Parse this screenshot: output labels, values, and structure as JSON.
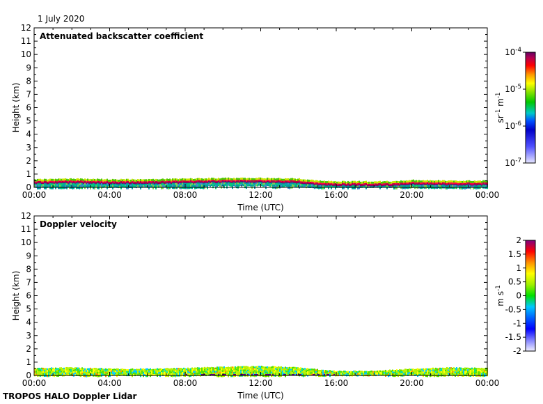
{
  "date_label": "1 July 2020",
  "footer_label": "TROPOS HALO Doppler Lidar",
  "chart_data": [
    {
      "type": "heatmap",
      "title": "Attenuated backscatter coefficient",
      "xlabel": "Time (UTC)",
      "ylabel": "Height (km)",
      "xlim": [
        0,
        24
      ],
      "ylim": [
        0,
        12
      ],
      "x_ticks": [
        "00:00",
        "04:00",
        "08:00",
        "12:00",
        "16:00",
        "20:00",
        "00:00"
      ],
      "y_ticks": [
        "0",
        "1",
        "2",
        "3",
        "4",
        "5",
        "6",
        "7",
        "8",
        "9",
        "10",
        "11",
        "12"
      ],
      "colorbar": {
        "scale": "log",
        "label": "sr-1 m-1",
        "range": [
          1e-07,
          0.0001
        ],
        "tick_labels": [
          "10-4",
          "10-5",
          "10-6",
          "10-7"
        ]
      },
      "boundary_layer_top_km": [
        [
          0,
          0.45
        ],
        [
          2,
          0.5
        ],
        [
          4,
          0.45
        ],
        [
          6,
          0.45
        ],
        [
          8,
          0.5
        ],
        [
          10,
          0.55
        ],
        [
          12,
          0.55
        ],
        [
          14,
          0.5
        ],
        [
          15,
          0.35
        ],
        [
          16,
          0.3
        ],
        [
          18,
          0.3
        ],
        [
          19,
          0.3
        ],
        [
          20,
          0.4
        ],
        [
          22,
          0.35
        ],
        [
          24,
          0.35
        ]
      ]
    },
    {
      "type": "heatmap",
      "title": "Doppler velocity",
      "xlabel": "Time (UTC)",
      "ylabel": "Height (km)",
      "xlim": [
        0,
        24
      ],
      "ylim": [
        0,
        12
      ],
      "x_ticks": [
        "00:00",
        "04:00",
        "08:00",
        "12:00",
        "16:00",
        "20:00",
        "00:00"
      ],
      "y_ticks": [
        "0",
        "1",
        "2",
        "3",
        "4",
        "5",
        "6",
        "7",
        "8",
        "9",
        "10",
        "11",
        "12"
      ],
      "colorbar": {
        "scale": "linear",
        "label": "m s-1",
        "range": [
          -2,
          2
        ],
        "tick_labels": [
          "2",
          "1.5",
          "1",
          "0.5",
          "0",
          "-0.5",
          "-1",
          "-1.5",
          "-2"
        ]
      },
      "signal_top_km": [
        [
          0,
          0.55
        ],
        [
          2,
          0.6
        ],
        [
          4,
          0.5
        ],
        [
          6,
          0.5
        ],
        [
          8,
          0.55
        ],
        [
          10,
          0.65
        ],
        [
          12,
          0.7
        ],
        [
          14,
          0.6
        ],
        [
          15,
          0.45
        ],
        [
          16,
          0.35
        ],
        [
          18,
          0.35
        ],
        [
          20,
          0.5
        ],
        [
          22,
          0.6
        ],
        [
          24,
          0.55
        ]
      ]
    }
  ]
}
